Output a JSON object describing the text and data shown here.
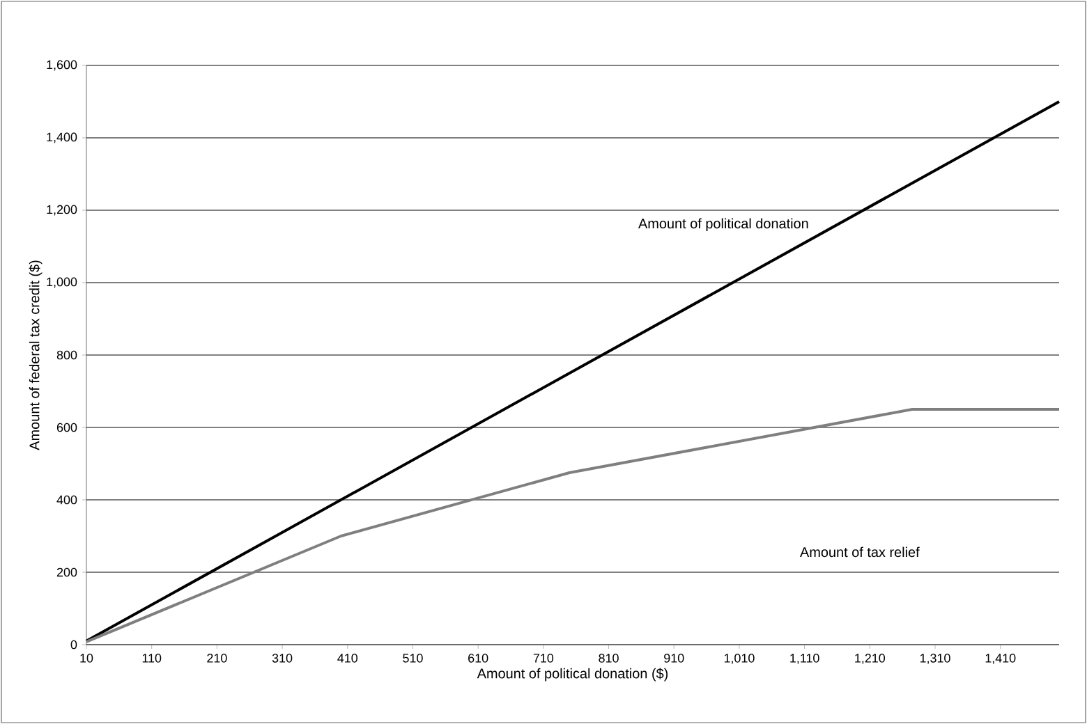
{
  "chart_data": {
    "type": "line",
    "xlabel": "Amount of political donation ($)",
    "ylabel": "Amount of federal tax credit ($)",
    "xlim": [
      10,
      1500
    ],
    "ylim": [
      0,
      1600
    ],
    "xticks": [
      10,
      110,
      210,
      310,
      410,
      510,
      610,
      710,
      810,
      910,
      {
        "value": 1010,
        "label": "1,010"
      },
      {
        "value": 1110,
        "label": "1,110"
      },
      {
        "value": 1210,
        "label": "1,210"
      },
      {
        "value": 1310,
        "label": "1,310"
      },
      {
        "value": 1410,
        "label": "1,410"
      }
    ],
    "yticks": [
      0,
      200,
      400,
      600,
      800,
      {
        "value": 1000,
        "label": "1,000"
      },
      {
        "value": 1200,
        "label": "1,200"
      },
      {
        "value": 1400,
        "label": "1,400"
      },
      {
        "value": 1600,
        "label": "1,600"
      }
    ],
    "grid": "y",
    "series": [
      {
        "color": "#000000",
        "x": [
          10,
          1500
        ],
        "values": [
          10,
          1500
        ]
      },
      {
        "color": "#7f7f7f",
        "x": [
          10,
          400,
          750,
          1275,
          1500
        ],
        "values": [
          8,
          300,
          475,
          650,
          650
        ]
      }
    ],
    "annotations": [
      "Amount of political donation",
      "Amount of tax relief"
    ]
  }
}
